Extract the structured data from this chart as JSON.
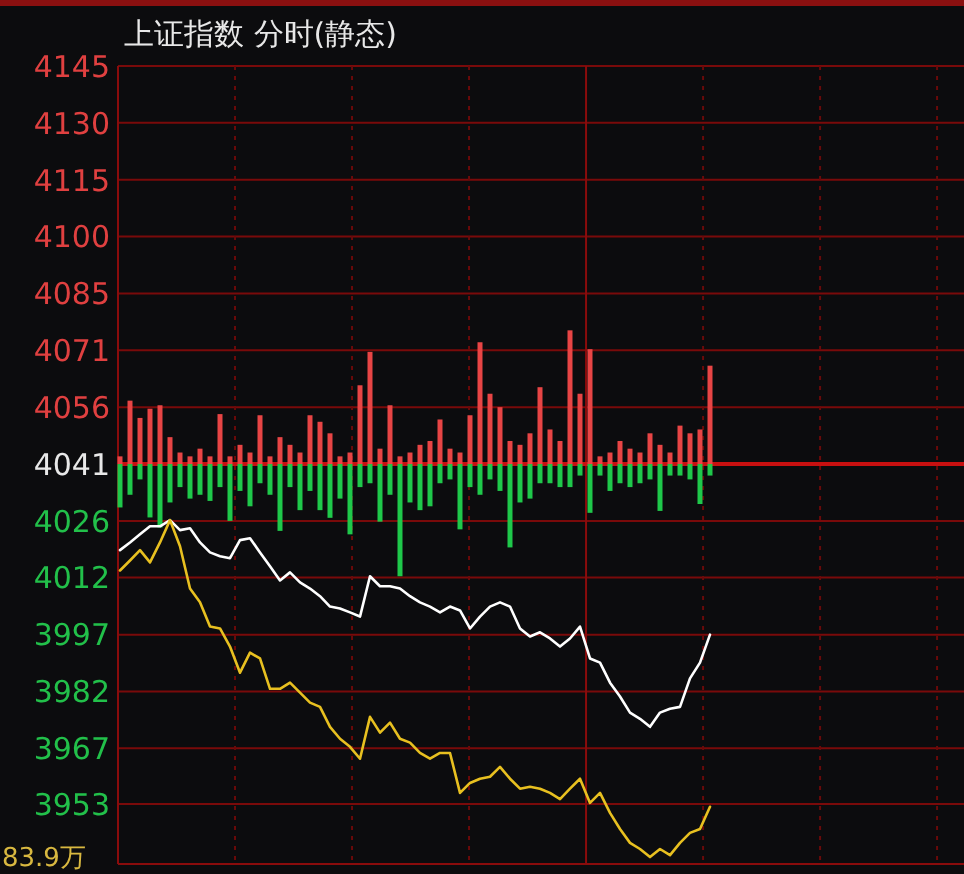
{
  "chart_data": {
    "type": "line",
    "title": "上证指数  分时(静态)",
    "categories": [
      null,
      null,
      null,
      null,
      null,
      null,
      null,
      null,
      null,
      null,
      null,
      null,
      null,
      null,
      null,
      null,
      null,
      null,
      null,
      null,
      null,
      null,
      null,
      null,
      null,
      null,
      null,
      null,
      null,
      null,
      null,
      null,
      null,
      null,
      null,
      null,
      null,
      null,
      null,
      null,
      null,
      null,
      null,
      null,
      null,
      null,
      null,
      null,
      null,
      null,
      null,
      null,
      null,
      null,
      null,
      null,
      null,
      null,
      null,
      null,
      null,
      null,
      null,
      null,
      null,
      null,
      null,
      null,
      null,
      null,
      null,
      null,
      null,
      null,
      null,
      null,
      null,
      null,
      null,
      null,
      null,
      null,
      null,
      null,
      null
    ],
    "series": [
      {
        "type": "bar",
        "color": "#e84545",
        "base": [
          4041,
          4041,
          4041,
          4041,
          4041,
          4041,
          4041,
          4041,
          4041,
          4041,
          4041,
          4041,
          4041,
          4041,
          4041,
          4041,
          4041,
          4041,
          4041,
          4041,
          4041,
          4041,
          4041,
          4041,
          4041,
          4041,
          4041,
          4041,
          4041,
          4041,
          4041,
          4041,
          4041,
          4041,
          4041,
          4041,
          4041,
          4041,
          4041,
          4041,
          4041,
          4041,
          4041,
          4041,
          4041,
          4041,
          4041,
          4041,
          4041,
          4041,
          4041,
          4041,
          4041,
          4041,
          4041,
          4041,
          4041,
          4041,
          4041,
          4041,
          null,
          null,
          null,
          null,
          null,
          null,
          null,
          null,
          null,
          null,
          null,
          null,
          null,
          null,
          null,
          null,
          null,
          null,
          null,
          null,
          null,
          null,
          null,
          null,
          null
        ],
        "values": [
          2,
          16.5,
          12,
          14.4,
          15.3,
          7,
          3,
          2,
          4,
          2,
          13,
          2,
          5,
          3,
          12.7,
          2,
          7,
          5,
          3,
          12.7,
          11,
          8,
          2,
          3,
          20.5,
          29.2,
          4,
          15.3,
          2,
          3,
          5,
          6,
          11.6,
          4,
          3,
          12.7,
          31.7,
          18.3,
          14.8,
          6,
          5,
          8,
          20,
          9,
          6,
          34.8,
          18.3,
          29.9,
          2,
          3,
          6,
          4,
          3,
          8,
          5,
          3,
          10,
          8,
          9,
          25.6,
          null,
          null,
          null,
          null,
          null,
          null,
          null,
          null,
          null,
          null,
          null,
          null,
          null,
          null,
          null,
          null,
          null,
          null,
          null,
          null,
          null,
          null,
          null,
          null,
          null
        ]
      },
      {
        "type": "bar",
        "color": "#1fc84a",
        "base": [
          4041,
          4041,
          4041,
          4041,
          4041,
          4041,
          4041,
          4041,
          4041,
          4041,
          4041,
          4041,
          4041,
          4041,
          4041,
          4041,
          4041,
          4041,
          4041,
          4041,
          4041,
          4041,
          4041,
          4041,
          4041,
          4041,
          4041,
          4041,
          4041,
          4041,
          4041,
          4041,
          4041,
          4041,
          4041,
          4041,
          4041,
          4041,
          4041,
          4041,
          4041,
          4041,
          4041,
          4041,
          4041,
          4041,
          4041,
          4041,
          4041,
          4041,
          4041,
          4041,
          4041,
          4041,
          4041,
          4041,
          4041,
          4041,
          4041,
          4041,
          null,
          null,
          null,
          null,
          null,
          null,
          null,
          null,
          null,
          null,
          null,
          null,
          null,
          null,
          null,
          null,
          null,
          null,
          null,
          null,
          null,
          null,
          null,
          null,
          null
        ],
        "values": [
          -11.3,
          -8,
          -4,
          -13.9,
          -16.5,
          -10,
          -6,
          -9,
          -8,
          -9.6,
          -6,
          -14.8,
          -7,
          -11,
          -5,
          -8,
          -17.4,
          -6,
          -12,
          -7,
          -12,
          -14,
          -9,
          -18.3,
          -6,
          -5,
          -15,
          -8,
          -29.2,
          -10,
          -12,
          -11,
          -5,
          -4,
          -17,
          -6,
          -8,
          -4,
          -7,
          -21.7,
          -10,
          -9,
          -5,
          -5,
          -6,
          -6,
          -3,
          -12.7,
          -3,
          -7,
          -5,
          -6,
          -5,
          -4,
          -12.2,
          -3,
          -3,
          -4,
          -10.4,
          -3,
          null,
          null,
          null,
          null,
          null,
          null,
          null,
          null,
          null,
          null,
          null,
          null,
          null,
          null,
          null,
          null,
          null,
          null,
          null,
          null,
          null,
          null,
          null,
          null,
          null
        ]
      },
      {
        "color": "#ffffff",
        "values": [
          4018.6,
          4020.6,
          4022.7,
          4024.8,
          4024.8,
          4026.4,
          4023.8,
          4024.3,
          4020.6,
          4018,
          4017,
          4016.5,
          4021.2,
          4021.7,
          4018,
          4014.4,
          4010.7,
          4012.8,
          4010.2,
          4008.6,
          4006.6,
          4003.9,
          4003.4,
          4002.4,
          4001.3,
          4011.8,
          4009.2,
          4009.2,
          4008.6,
          4006.6,
          4005,
          4003.9,
          4002.4,
          4003.9,
          4002.9,
          3998.2,
          4001.3,
          4003.9,
          4005,
          4003.9,
          3998.2,
          3996.1,
          3997.2,
          3995.6,
          3993.5,
          3995.6,
          3998.7,
          3990.4,
          3989.3,
          3984.1,
          3980.5,
          3976.3,
          3974.7,
          3972.6,
          3976.3,
          3977.3,
          3977.8,
          3985.2,
          3989.3,
          3996.6,
          null,
          null,
          null,
          null,
          null,
          null,
          null,
          null,
          null,
          null,
          null,
          null,
          null,
          null,
          null,
          null,
          null,
          null,
          null,
          null,
          null,
          null,
          null,
          null,
          null
        ]
      },
      {
        "color": "#e8c020",
        "values": [
          4013.3,
          4015.9,
          4018.6,
          4015.4,
          4020.6,
          4026.4,
          4019.6,
          4008.6,
          4005,
          3998.7,
          3998.2,
          3993.5,
          3986.7,
          3991.9,
          3990.4,
          3982.5,
          3982.5,
          3984.1,
          3981.5,
          3978.9,
          3977.8,
          3972.6,
          3969.5,
          3967.4,
          3964.3,
          3975.2,
          3971.1,
          3973.7,
          3969.5,
          3968.5,
          3965.8,
          3964.3,
          3965.8,
          3965.8,
          3955.4,
          3958,
          3959.1,
          3959.6,
          3962.2,
          3959.1,
          3956.5,
          3957,
          3956.5,
          3955.4,
          3953.8,
          3956.5,
          3959.1,
          3952.8,
          3955.4,
          3950.2,
          3946,
          3942.4,
          3940.8,
          3938.7,
          3940.8,
          3939.2,
          3942.4,
          3945,
          3946,
          3951.8,
          null,
          null,
          null,
          null,
          null,
          null,
          null,
          null,
          null,
          null,
          null,
          null,
          null,
          null,
          null,
          null,
          null,
          null,
          null,
          null,
          null,
          null,
          null,
          null,
          null
        ]
      }
    ],
    "ylim": [
      3936.9,
      4144.6
    ],
    "yticks": [
      {
        "value": 4144.6,
        "label": "4145"
      },
      {
        "value": 4129.8,
        "label": "4130"
      },
      {
        "value": 4115,
        "label": "4115"
      },
      {
        "value": 4100.2,
        "label": "4100"
      },
      {
        "value": 4085.4,
        "label": "4085"
      },
      {
        "value": 4070.6,
        "label": "4071"
      },
      {
        "value": 4055.8,
        "label": "4056"
      },
      {
        "value": 4041,
        "label": "4041"
      },
      {
        "value": 4026.2,
        "label": "4026"
      },
      {
        "value": 4011.5,
        "label": "4012"
      },
      {
        "value": 3996.6,
        "label": "3997"
      },
      {
        "value": 3981.8,
        "label": "3982"
      },
      {
        "value": 3967,
        "label": "3967"
      },
      {
        "value": 3952.5,
        "label": "3953"
      }
    ],
    "ref_lines": [
      {
        "axis": "y",
        "value": 4041,
        "color": "#c81010"
      }
    ],
    "grid": true,
    "annotations": [
      "83.9万"
    ]
  }
}
